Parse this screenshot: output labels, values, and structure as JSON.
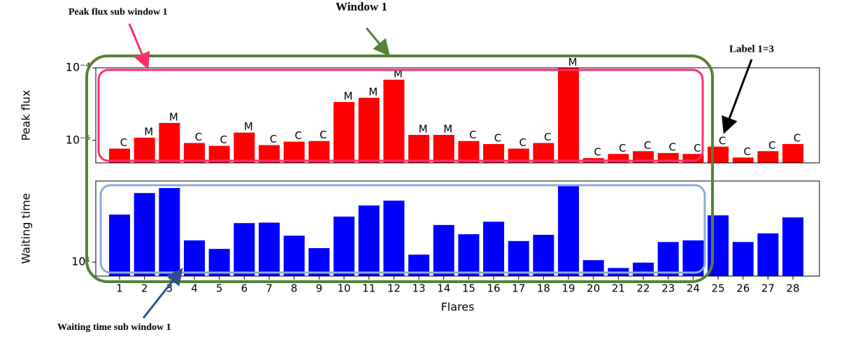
{
  "chart_data": [
    {
      "type": "bar",
      "ylabel": "Peak flux",
      "color": "#ff0000",
      "log": true,
      "values": [
        7.7e-06,
        1.09e-05,
        1.74e-05,
        9.2e-06,
        8.4e-06,
        1.28e-05,
        8.6e-06,
        9.6e-06,
        9.8e-06,
        3.38e-05,
        3.86e-05,
        6.86e-05,
        1.19e-05,
        1.19e-05,
        9.8e-06,
        8.9e-06,
        7.7e-06,
        9.2e-06,
        9.9e-05,
        5.7e-06,
        6.5e-06,
        7.1e-06,
        6.7e-06,
        6.5e-06,
        8.2e-06,
        5.8e-06,
        7.1e-06,
        8.9e-06
      ],
      "flare_class": [
        "C",
        "M",
        "M",
        "C",
        "C",
        "M",
        "C",
        "C",
        "C",
        "M",
        "M",
        "M",
        "M",
        "M",
        "C",
        "C",
        "C",
        "C",
        "M",
        "C",
        "C",
        "C",
        "C",
        "C",
        "C",
        "C",
        "C",
        "C"
      ],
      "ylim": [
        4.9e-06,
        0.0001
      ],
      "yticks": [
        {
          "value": 0.0001,
          "label": "10⁻⁴"
        },
        {
          "value": 1e-05,
          "label": "10⁻⁵"
        }
      ]
    },
    {
      "type": "bar",
      "ylabel": "Waiting time",
      "xlabel": "Flares",
      "color": "#0000ff",
      "log": true,
      "categories": [
        "1",
        "2",
        "3",
        "4",
        "5",
        "6",
        "7",
        "8",
        "9",
        "10",
        "11",
        "12",
        "13",
        "14",
        "15",
        "16",
        "17",
        "18",
        "19",
        "20",
        "21",
        "22",
        "23",
        "24",
        "25",
        "26",
        "27",
        "28"
      ],
      "values": [
        25.7,
        39.4,
        43.5,
        15.4,
        13.0,
        21.7,
        21.9,
        16.9,
        13.2,
        24.7,
        30.8,
        33.9,
        11.6,
        20.9,
        17.4,
        22.3,
        15.2,
        17.2,
        45.4,
        10.4,
        8.9,
        9.9,
        14.9,
        15.4,
        25.3,
        14.9,
        17.7,
        24.3
      ],
      "ylim": [
        7.58,
        50
      ],
      "yticks": [
        {
          "value": 10,
          "label": "10¹"
        }
      ]
    }
  ],
  "annotations": {
    "peak_window": "Peak flux sub window 1",
    "window": "Window 1",
    "label": "Label 1=3",
    "waiting_window": "Waiting time sub window 1"
  }
}
